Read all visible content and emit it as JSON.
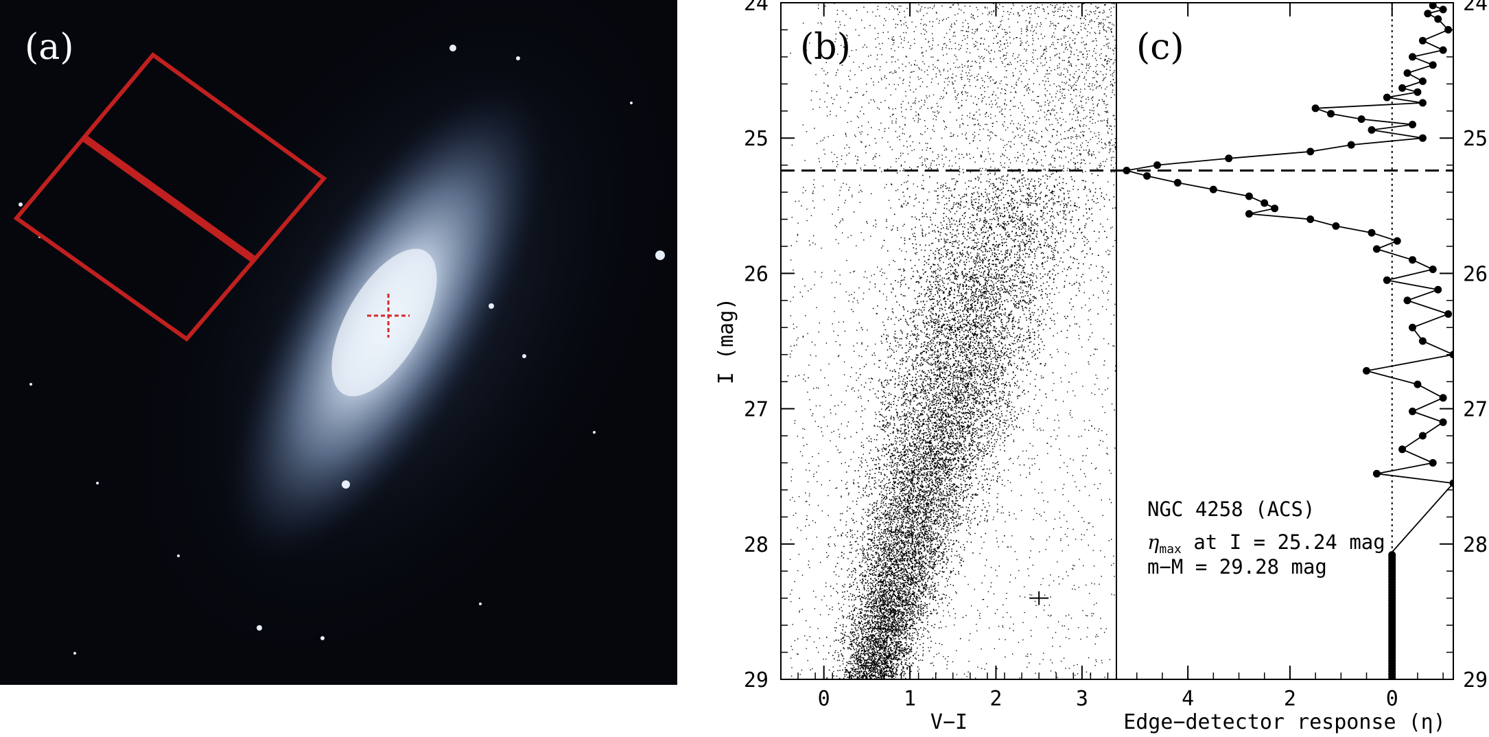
{
  "panels": {
    "a": {
      "label": "(a)",
      "galaxy_center_marker": "red-crosshair",
      "frame_color": "#c0201f",
      "galaxy_glow_color": "#d8e6f6"
    },
    "b": {
      "label": "(b)"
    },
    "c": {
      "label": "(c)"
    }
  },
  "annotation": {
    "line1": "NGC 4258 (ACS)",
    "line2_symbol": "η",
    "line2_sub": "max",
    "line2_rest": " at I = 25.24 mag",
    "line3": "m−M = 29.28 mag"
  },
  "chart_data": [
    {
      "type": "scatter",
      "panel": "b",
      "xlabel": "V−I",
      "ylabel": "I (mag)",
      "xlim": [
        -0.5,
        3.4
      ],
      "ylim": [
        29,
        24
      ],
      "y_inverted": true,
      "xticks": [
        0,
        1,
        2,
        3
      ],
      "yticks": [
        24,
        25,
        26,
        27,
        28,
        29
      ],
      "tip_line_I": 25.24,
      "error_cross": {
        "x": 2.5,
        "y": 28.4
      },
      "point_density": "dense red-giant branch fanning from V−I≈0.5, I≈29 up to V−I≈2.2, I≈25.3; sparse field stars above I=25.24"
    },
    {
      "type": "line",
      "panel": "c",
      "xlabel": "Edge−detector response (η)",
      "xlim": [
        5.4,
        -1.2
      ],
      "ylim": [
        29,
        24
      ],
      "y_inverted": true,
      "xticks": [
        4,
        2,
        0
      ],
      "yticks": [
        24,
        25,
        26,
        27,
        28,
        29
      ],
      "zero_line": 0,
      "tip_line_I": 25.24,
      "series": [
        {
          "points": [
            [
              -0.8,
              24.02
            ],
            [
              -1.0,
              24.05
            ],
            [
              -0.7,
              24.08
            ],
            [
              -0.9,
              24.12
            ],
            [
              -1.1,
              24.2
            ],
            [
              -0.6,
              24.28
            ],
            [
              -1.0,
              24.35
            ],
            [
              -0.4,
              24.4
            ],
            [
              -0.8,
              24.46
            ],
            [
              -0.3,
              24.52
            ],
            [
              -0.6,
              24.58
            ],
            [
              -0.2,
              24.63
            ],
            [
              -0.5,
              24.66
            ],
            [
              0.1,
              24.7
            ],
            [
              -0.6,
              24.74
            ],
            [
              1.5,
              24.78
            ],
            [
              1.2,
              24.82
            ],
            [
              0.6,
              24.86
            ],
            [
              -0.4,
              24.9
            ],
            [
              0.4,
              24.94
            ],
            [
              -0.6,
              25.0
            ],
            [
              0.8,
              25.05
            ],
            [
              1.6,
              25.1
            ],
            [
              3.2,
              25.15
            ],
            [
              4.6,
              25.2
            ],
            [
              5.2,
              25.24
            ],
            [
              4.8,
              25.28
            ],
            [
              4.2,
              25.33
            ],
            [
              3.5,
              25.38
            ],
            [
              2.8,
              25.43
            ],
            [
              2.5,
              25.48
            ],
            [
              2.3,
              25.52
            ],
            [
              2.8,
              25.56
            ],
            [
              1.6,
              25.6
            ],
            [
              1.1,
              25.65
            ],
            [
              0.4,
              25.7
            ],
            [
              -0.1,
              25.76
            ],
            [
              0.3,
              25.82
            ],
            [
              -0.4,
              25.9
            ],
            [
              -0.8,
              25.97
            ],
            [
              0.1,
              26.05
            ],
            [
              -0.9,
              26.12
            ],
            [
              -0.3,
              26.2
            ],
            [
              -1.1,
              26.3
            ],
            [
              -0.4,
              26.4
            ],
            [
              -0.6,
              26.5
            ],
            [
              -1.2,
              26.6
            ],
            [
              0.5,
              26.72
            ],
            [
              -0.5,
              26.82
            ],
            [
              -1.0,
              26.92
            ],
            [
              -0.4,
              27.02
            ],
            [
              -1.0,
              27.1
            ],
            [
              -0.6,
              27.2
            ],
            [
              -0.2,
              27.3
            ],
            [
              -0.8,
              27.4
            ],
            [
              0.3,
              27.48
            ],
            [
              -1.2,
              27.55
            ],
            [
              0.0,
              28.06
            ],
            [
              0.0,
              29.0
            ]
          ]
        }
      ]
    }
  ]
}
